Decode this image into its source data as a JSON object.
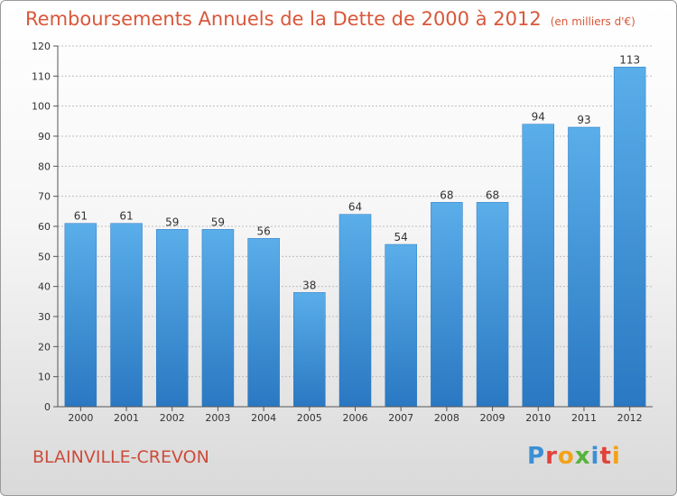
{
  "chart_data": {
    "type": "bar",
    "title": "Remboursements Annuels de la Dette de 2000 à 2012",
    "unit": "(en milliers d'€)",
    "categories": [
      "2000",
      "2001",
      "2002",
      "2003",
      "2004",
      "2005",
      "2006",
      "2007",
      "2008",
      "2009",
      "2010",
      "2011",
      "2012"
    ],
    "values": [
      61,
      61,
      59,
      59,
      56,
      38,
      64,
      54,
      68,
      68,
      94,
      93,
      113
    ],
    "ylim": [
      0,
      120
    ],
    "yticks": [
      0,
      10,
      20,
      30,
      40,
      50,
      60,
      70,
      80,
      90,
      100,
      110,
      120
    ],
    "grid": true,
    "bar_color": "#4a9be0"
  },
  "commune": "BLAINVILLE-CREVON",
  "logo": {
    "letters": [
      "P",
      "r",
      "o",
      "x",
      "i",
      "t",
      "i"
    ],
    "colors": [
      "#3b8fd6",
      "#e0433a",
      "#f2a21b",
      "#55b43c",
      "#3b8fd6",
      "#e0433a",
      "#f2a21b"
    ]
  }
}
